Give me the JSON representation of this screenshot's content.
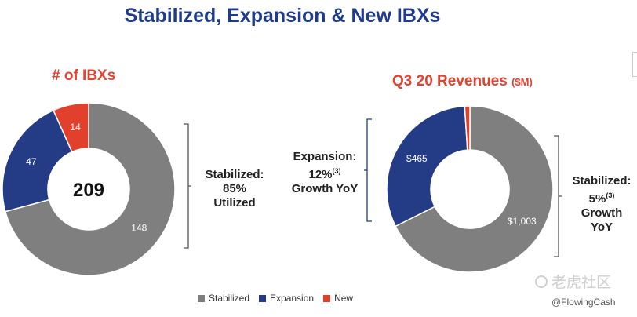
{
  "title": "Stabilized, Expansion & New IBXs",
  "colors": {
    "stabilized": "#7f7f7f",
    "expansion": "#243c85",
    "new": "#e1402d"
  },
  "chart_data": [
    {
      "type": "pie",
      "title": "# of IBXs",
      "center_label": "209",
      "categories": [
        "Stabilized",
        "Expansion",
        "New"
      ],
      "values": [
        148,
        47,
        14
      ],
      "labels": [
        "148",
        "47",
        "14"
      ]
    },
    {
      "type": "pie",
      "title": "Q3 20 Revenues",
      "unit": "($M)",
      "categories": [
        "Stabilized",
        "Expansion",
        "New"
      ],
      "values": [
        1003,
        465,
        15
      ],
      "labels": [
        "$1,003",
        "$465",
        ""
      ]
    }
  ],
  "annotations": {
    "left": {
      "line1": "Stabilized:",
      "line2": "85%",
      "line3": "Utilized"
    },
    "middle": {
      "line1": "Expansion:",
      "line2": "12%",
      "note": "(3)",
      "line3": "Growth YoY"
    },
    "right": {
      "line1": "Stabilized:",
      "line2": "5%",
      "note": "(3)",
      "line3": "Growth",
      "line4": "YoY"
    }
  },
  "legend": [
    "Stabilized",
    "Expansion",
    "New"
  ],
  "watermark": {
    "text": "老虎社区",
    "icon": "tiger-icon"
  },
  "handle": "@FlowingCash"
}
